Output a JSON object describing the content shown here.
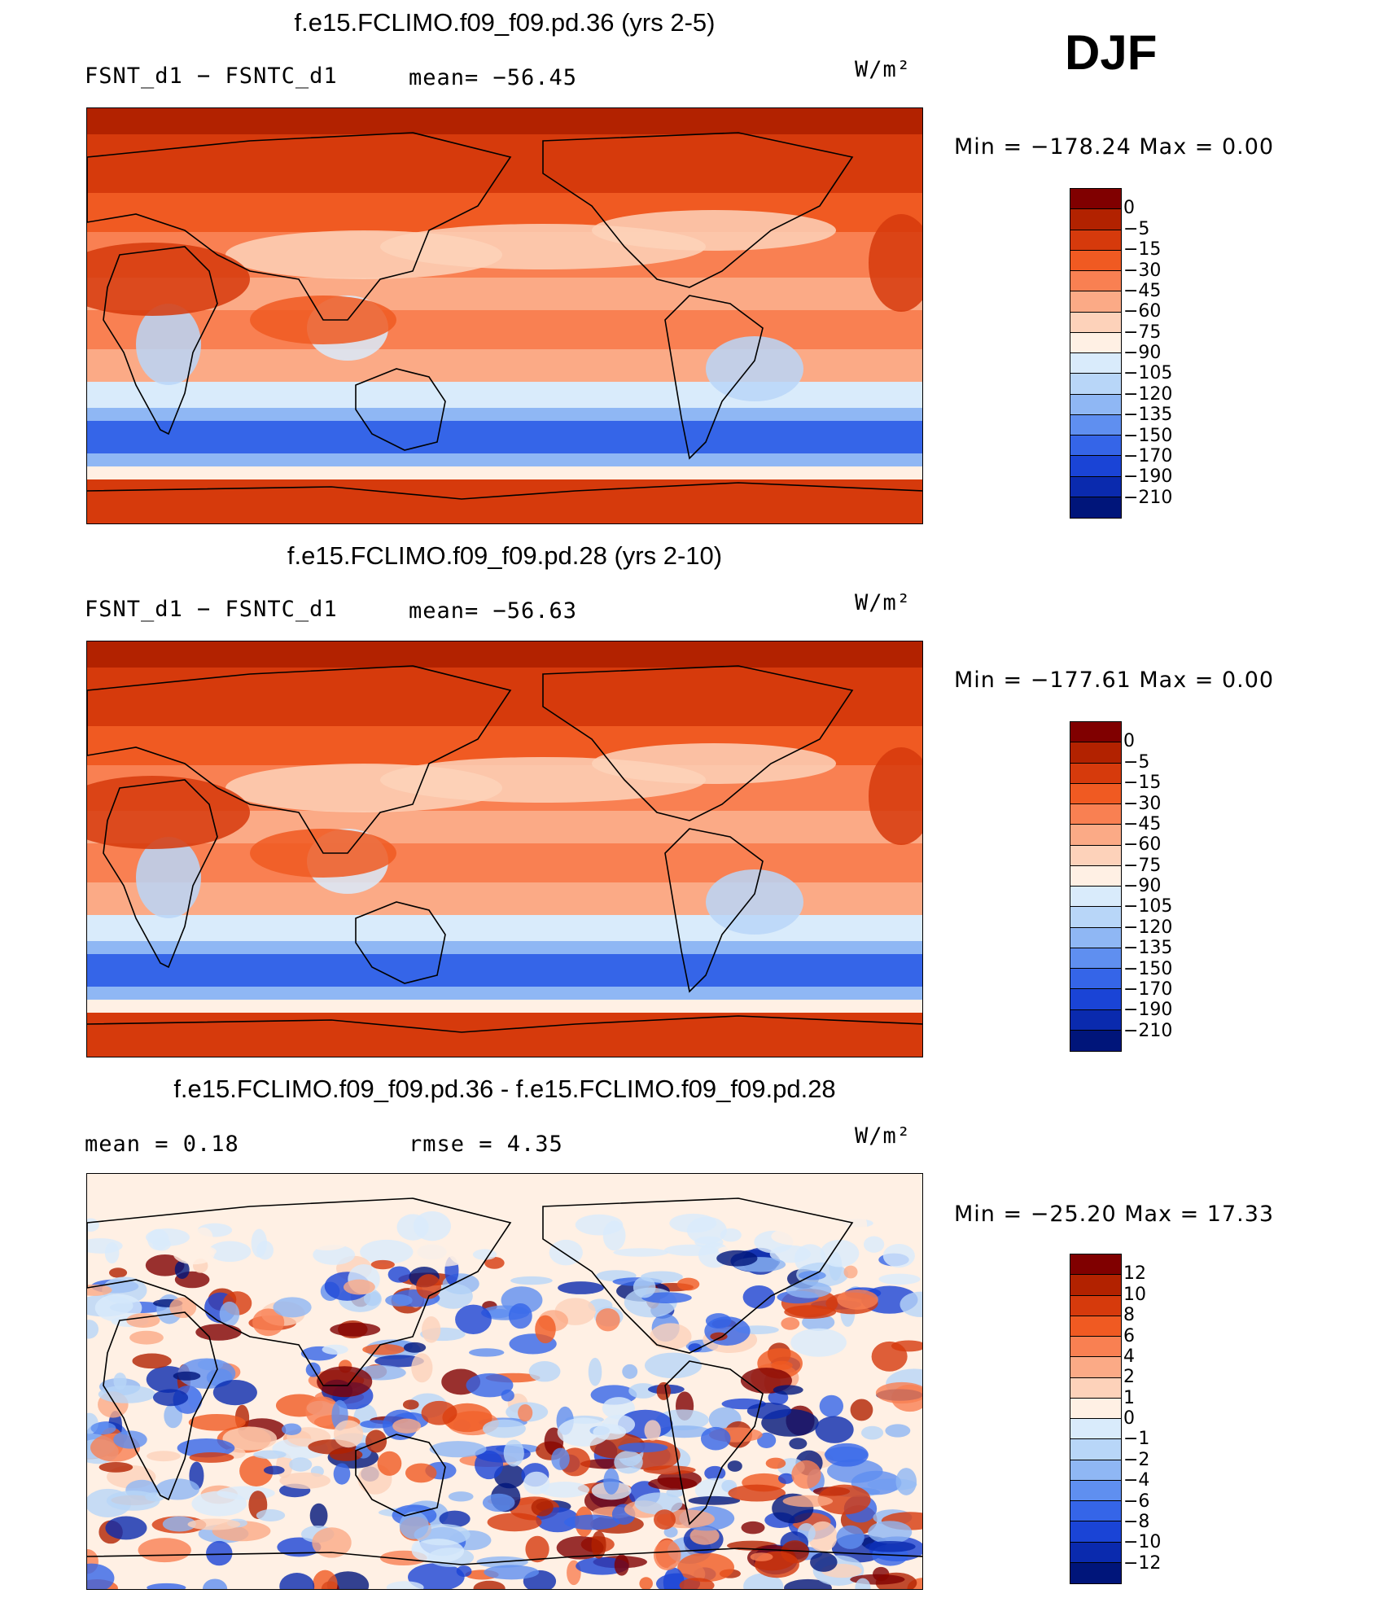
{
  "season": "DJF",
  "panels": [
    {
      "title": "f.e15.FCLIMO.f09_f09.pd.36 (yrs 2-5)",
      "left_text": "FSNT_d1  −  FSNTC_d1",
      "mid_text": "mean=  −56.45",
      "units": "W/m²",
      "min_max": "Min  =  −178.24  Max  =      0.00",
      "colorbar": {
        "labels": [
          "0",
          "−5",
          "−15",
          "−30",
          "−45",
          "−60",
          "−75",
          "−90",
          "−105",
          "−120",
          "−135",
          "−150",
          "−170",
          "−190",
          "−210"
        ],
        "colors": [
          "#800000",
          "#b22200",
          "#d63a0c",
          "#f05a22",
          "#f98052",
          "#fbaa86",
          "#fdd2ba",
          "#fff0e4",
          "#d9ebfb",
          "#b8d6f8",
          "#8fb7f4",
          "#5f8ff0",
          "#3565e8",
          "#1a44d6",
          "#0a2aae",
          "#00157a"
        ]
      }
    },
    {
      "title": "f.e15.FCLIMO.f09_f09.pd.28 (yrs 2-10)",
      "left_text": "FSNT_d1  −  FSNTC_d1",
      "mid_text": "mean=  −56.63",
      "units": "W/m²",
      "min_max": "Min  =  −177.61  Max  =      0.00",
      "colorbar": {
        "labels": [
          "0",
          "−5",
          "−15",
          "−30",
          "−45",
          "−60",
          "−75",
          "−90",
          "−105",
          "−120",
          "−135",
          "−150",
          "−170",
          "−190",
          "−210"
        ],
        "colors": [
          "#800000",
          "#b22200",
          "#d63a0c",
          "#f05a22",
          "#f98052",
          "#fbaa86",
          "#fdd2ba",
          "#fff0e4",
          "#d9ebfb",
          "#b8d6f8",
          "#8fb7f4",
          "#5f8ff0",
          "#3565e8",
          "#1a44d6",
          "#0a2aae",
          "#00157a"
        ]
      }
    },
    {
      "title": "f.e15.FCLIMO.f09_f09.pd.36 - f.e15.FCLIMO.f09_f09.pd.28",
      "left_text": "mean  =     0.18",
      "mid_text": "rmse  =     4.35",
      "units": "W/m²",
      "min_max": "Min  =  −25.20  Max  =    17.33",
      "colorbar": {
        "labels": [
          "12",
          "10",
          "8",
          "6",
          "4",
          "2",
          "1",
          "0",
          "−1",
          "−2",
          "−4",
          "−6",
          "−8",
          "−10",
          "−12"
        ],
        "colors": [
          "#800000",
          "#b22200",
          "#d63a0c",
          "#f05a22",
          "#f98052",
          "#fbaa86",
          "#fdd2ba",
          "#fff0e4",
          "#d9ebfb",
          "#b8d6f8",
          "#8fb7f4",
          "#5f8ff0",
          "#3565e8",
          "#1a44d6",
          "#0a2aae",
          "#00157a"
        ]
      }
    }
  ]
}
